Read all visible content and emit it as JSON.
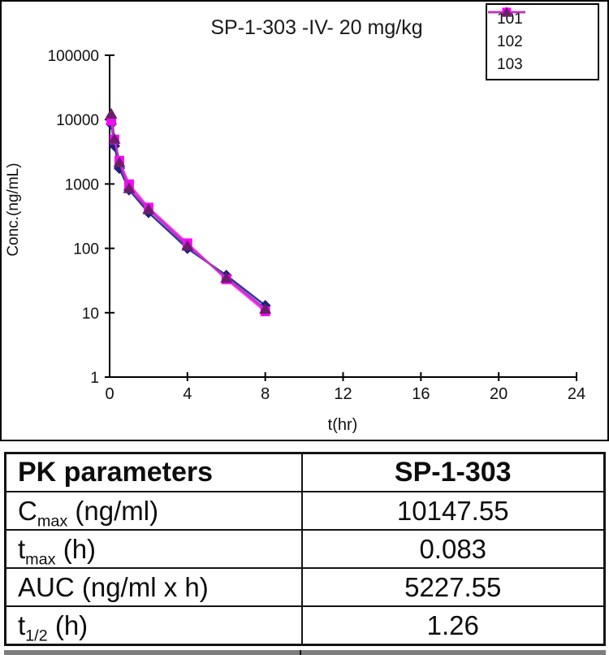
{
  "chart_data": {
    "type": "line",
    "title": "SP-1-303 -IV- 20 mg/kg",
    "xlabel": "t(hr)",
    "ylabel": "Conc.(ng/mL)",
    "yscale": "log",
    "grid": false,
    "legend_position": "top-right",
    "xlim": [
      0,
      24
    ],
    "ylim": [
      1,
      100000
    ],
    "xticks": [
      0,
      4,
      8,
      12,
      16,
      20,
      24
    ],
    "yticks": [
      1,
      10,
      100,
      1000,
      10000,
      100000
    ],
    "x": [
      0.083,
      0.25,
      0.5,
      1,
      2,
      4,
      6,
      8
    ],
    "series": [
      {
        "name": "101",
        "marker": "diamond",
        "line_color": "#3333A3",
        "marker_color": "#1F1F7E",
        "values": [
          8500,
          3900,
          1750,
          810,
          360,
          100,
          38,
          12.9
        ]
      },
      {
        "name": "102",
        "marker": "square",
        "line_color": "#FF2BFF",
        "marker_color": "#FF00FF",
        "values": [
          9600,
          4900,
          2300,
          990,
          430,
          120,
          33,
          10.5
        ]
      },
      {
        "name": "103",
        "marker": "triangle",
        "line_color": "#BB35BB",
        "marker_color": "#6B1F6B",
        "values": [
          12400,
          5050,
          2180,
          860,
          405,
          110,
          35,
          11.5
        ]
      }
    ]
  },
  "pk_table": {
    "header": {
      "param": "PK parameters",
      "compound": "SP-1-303"
    },
    "rows": [
      {
        "base": "C",
        "sub": "max",
        "rest": " (ng/ml)",
        "value": "10147.55"
      },
      {
        "base": "t",
        "sub": "max",
        "rest": " (h)",
        "value": "0.083"
      },
      {
        "base": "AUC",
        "sub": "",
        "rest": " (ng/ml x h)",
        "value": "5227.55"
      },
      {
        "base": "t",
        "sub": "1/2",
        "rest": " (h)",
        "value": "1.26"
      }
    ]
  }
}
